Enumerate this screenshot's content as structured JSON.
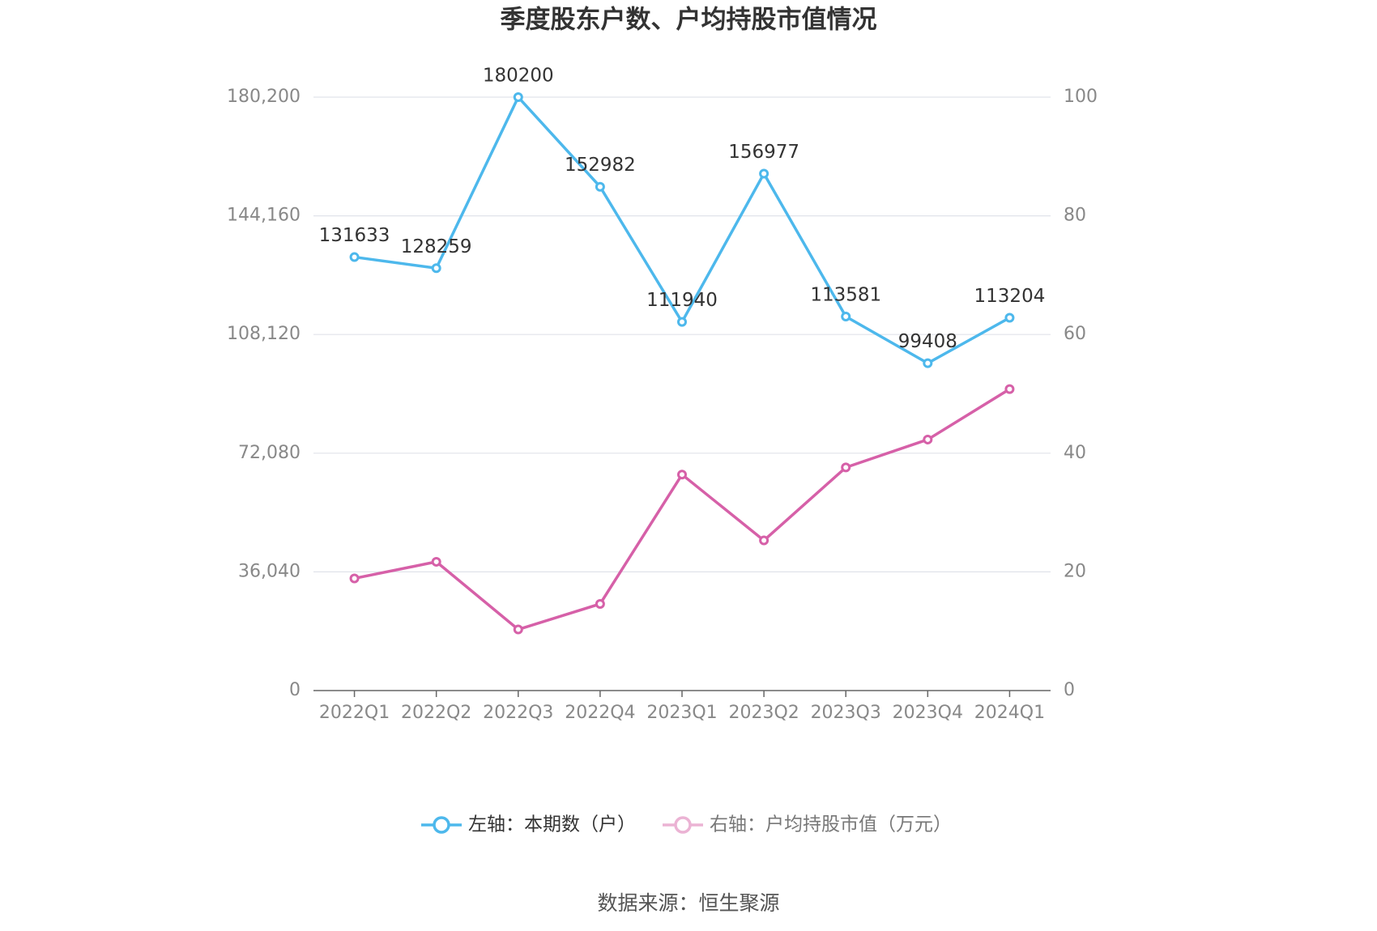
{
  "chart_data": {
    "type": "line",
    "title": "季度股东户数、户均持股市值情况",
    "categories": [
      "2022Q1",
      "2022Q2",
      "2022Q3",
      "2022Q4",
      "2023Q1",
      "2023Q2",
      "2023Q3",
      "2023Q4",
      "2024Q1"
    ],
    "series": [
      {
        "name": "左轴：本期数（户）",
        "color": "#4db8ec",
        "values": [
          131633,
          128259,
          180200,
          152982,
          111940,
          156977,
          113581,
          99408,
          113204
        ]
      },
      {
        "name": "右轴：户均持股市值（万元）",
        "color": "#d660a8",
        "axis": "y2",
        "values": [
          18.9,
          21.7,
          10.3,
          14.6,
          36.4,
          25.3,
          37.6,
          42.3,
          50.8
        ]
      }
    ],
    "ylim": [
      0,
      180200
    ],
    "yticks": [
      0,
      {
        "value": 36040,
        "label": "36,040"
      },
      {
        "value": 72080,
        "label": "72,080"
      },
      {
        "value": 108120,
        "label": "108,120"
      },
      {
        "value": 144160,
        "label": "144,160"
      },
      {
        "value": 180200,
        "label": "180,200"
      }
    ],
    "y2lim": [
      0,
      100
    ],
    "y2ticks": [
      0,
      20,
      40,
      60,
      80,
      100
    ],
    "grid": true,
    "source": "数据来源：恒生聚源"
  }
}
